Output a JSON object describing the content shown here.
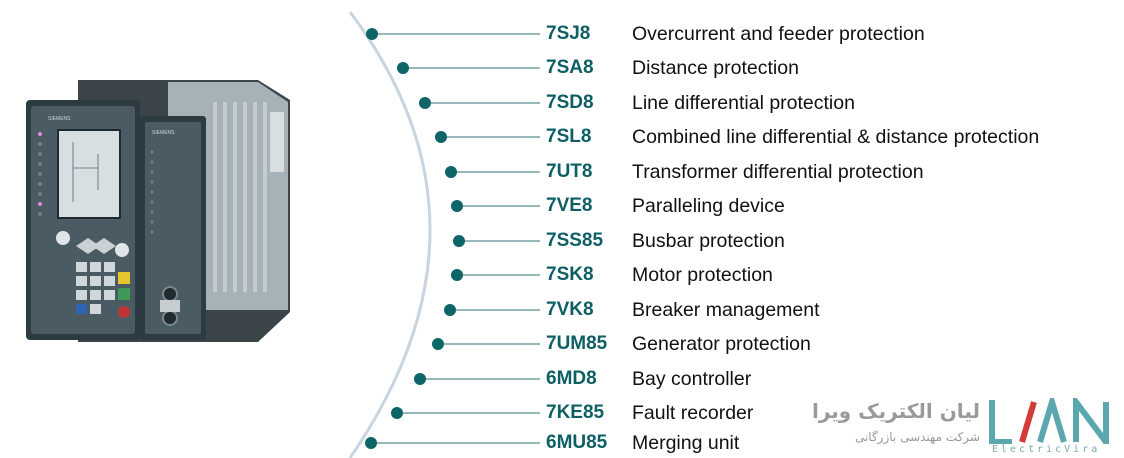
{
  "products": [
    {
      "code": "7SJ8",
      "description": "Overcurrent and feeder protection"
    },
    {
      "code": "7SA8",
      "description": "Distance protection"
    },
    {
      "code": "7SD8",
      "description": "Line differential protection"
    },
    {
      "code": "7SL8",
      "description": "Combined line differential & distance protection"
    },
    {
      "code": "7UT8",
      "description": "Transformer differential protection"
    },
    {
      "code": "7VE8",
      "description": "Paralleling device"
    },
    {
      "code": "7SS85",
      "description": "Busbar protection"
    },
    {
      "code": "7SK8",
      "description": "Motor protection"
    },
    {
      "code": "7VK8",
      "description": "Breaker management"
    },
    {
      "code": "7UM85",
      "description": "Generator protection"
    },
    {
      "code": "6MD8",
      "description": "Bay controller"
    },
    {
      "code": "7KE85",
      "description": "Fault recorder"
    },
    {
      "code": "6MU85",
      "description": "Merging unit"
    }
  ],
  "device": {
    "brand_main": "SIEMENS",
    "brand_side": "SIEMENS"
  },
  "watermark": {
    "name_fa": "لیان الکتریک ویرا",
    "subtitle_fa": "شرکت مهندسی بازرگانی",
    "brand_logo": "LIAN",
    "brand_en": "ElectricVira"
  },
  "colors": {
    "accent": "#0e5f63",
    "dot": "#0d6568",
    "curve": "#c9d4de",
    "logo_teal": "#5aa7ad",
    "logo_red": "#d33a3a"
  }
}
